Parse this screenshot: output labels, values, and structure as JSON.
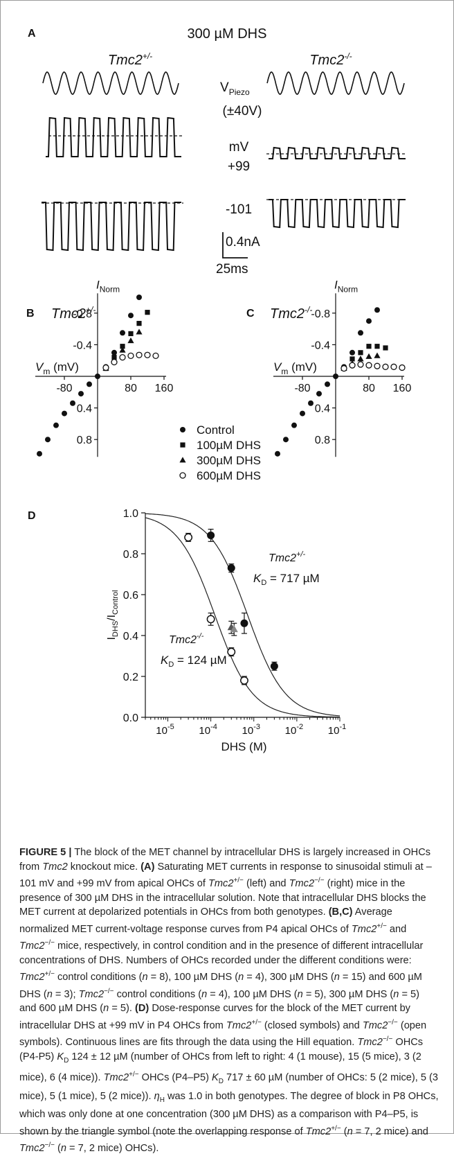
{
  "panel_a": {
    "label": "A",
    "condition": "300 µM DHS",
    "left_genotype": {
      "base": "Tmc2",
      "sup": "+/-"
    },
    "right_genotype": {
      "base": "Tmc2",
      "sup": "-/-"
    },
    "v_piezo": {
      "base": "V",
      "sub": "Piezo"
    },
    "piezo_amp": "(±40V)",
    "mv_unit": "mV",
    "pos_voltage": "+99",
    "neg_voltage": "-101",
    "scale_current": "0.4nA",
    "scale_time": "25ms"
  },
  "panel_b": {
    "label": "B",
    "genotype": {
      "base": "Tmc2",
      "sup": "+/-"
    }
  },
  "panel_c": {
    "label": "C",
    "genotype": {
      "base": "Tmc2",
      "sup": "-/-"
    }
  },
  "panel_d": {
    "label": "D"
  },
  "legend": {
    "items": [
      {
        "label": "Control",
        "marker": "filled-circle"
      },
      {
        "label": "100µM DHS",
        "marker": "filled-square"
      },
      {
        "label": "300µM DHS",
        "marker": "filled-triangle"
      },
      {
        "label": "600µM DHS",
        "marker": "open-circle"
      }
    ]
  },
  "chart_data": [
    {
      "type": "scatter",
      "panel": "B",
      "xlabel": "Vm (mV)",
      "ylabel": "INorm",
      "x_ticks": [
        "-80",
        "80",
        "160"
      ],
      "y_ticks": [
        "-0.8",
        "-0.4",
        "0.4",
        "0.8"
      ],
      "xlim": [
        -160,
        160
      ],
      "ylim": [
        1.0,
        -1.0
      ],
      "series": [
        {
          "name": "Control",
          "x": [
            -140,
            -120,
            -100,
            -80,
            -60,
            -40,
            -20,
            0,
            20,
            40,
            60,
            80,
            100
          ],
          "y": [
            0.98,
            0.8,
            0.62,
            0.47,
            0.34,
            0.22,
            0.1,
            0,
            -0.12,
            -0.3,
            -0.55,
            -0.77,
            -1.0
          ]
        },
        {
          "name": "100µM DHS",
          "x": [
            20,
            40,
            60,
            80,
            100,
            120
          ],
          "y": [
            -0.1,
            -0.24,
            -0.38,
            -0.54,
            -0.67,
            -0.81
          ]
        },
        {
          "name": "300µM DHS",
          "x": [
            20,
            40,
            60,
            80,
            100
          ],
          "y": [
            -0.1,
            -0.2,
            -0.33,
            -0.45,
            -0.56
          ]
        },
        {
          "name": "600µM DHS",
          "x": [
            20,
            40,
            60,
            80,
            100,
            120,
            140
          ],
          "y": [
            -0.11,
            -0.18,
            -0.24,
            -0.26,
            -0.27,
            -0.27,
            -0.26
          ]
        }
      ]
    },
    {
      "type": "scatter",
      "panel": "C",
      "xlabel": "Vm (mV)",
      "ylabel": "INorm",
      "x_ticks": [
        "-80",
        "80",
        "160"
      ],
      "y_ticks": [
        "-0.8",
        "-0.4",
        "0.4",
        "0.8"
      ],
      "xlim": [
        -160,
        160
      ],
      "ylim": [
        1.0,
        -1.0
      ],
      "series": [
        {
          "name": "Control",
          "x": [
            -140,
            -120,
            -100,
            -80,
            -60,
            -40,
            -20,
            0,
            20,
            40,
            60,
            80,
            100
          ],
          "y": [
            0.98,
            0.8,
            0.62,
            0.47,
            0.34,
            0.22,
            0.1,
            0,
            -0.12,
            -0.3,
            -0.55,
            -0.7,
            -0.84
          ]
        },
        {
          "name": "100µM DHS",
          "x": [
            20,
            40,
            60,
            80,
            100,
            120
          ],
          "y": [
            -0.1,
            -0.22,
            -0.3,
            -0.38,
            -0.38,
            -0.36
          ]
        },
        {
          "name": "300µM DHS",
          "x": [
            20,
            40,
            60,
            80,
            100
          ],
          "y": [
            -0.1,
            -0.16,
            -0.22,
            -0.25,
            -0.26
          ]
        },
        {
          "name": "600µM DHS",
          "x": [
            20,
            40,
            60,
            80,
            100,
            120,
            140,
            160
          ],
          "y": [
            -0.1,
            -0.14,
            -0.15,
            -0.14,
            -0.13,
            -0.12,
            -0.12,
            -0.11
          ]
        }
      ]
    },
    {
      "type": "scatter",
      "panel": "D",
      "xlabel": "DHS (M)",
      "ylabel": "IDHS/IControl",
      "log_x": true,
      "xlim": [
        3e-06,
        0.1
      ],
      "ylim": [
        0,
        1.0
      ],
      "x_ticks": [
        "10-5",
        "10-4",
        "10-3",
        "10-2",
        "10-1"
      ],
      "y_ticks": [
        "0.0",
        "0.2",
        "0.4",
        "0.6",
        "0.8",
        "1.0"
      ],
      "series": [
        {
          "name": "Tmc2+/-",
          "x": [
            0.0001,
            0.0003,
            0.0006,
            0.003
          ],
          "y": [
            0.89,
            0.73,
            0.46,
            0.25
          ],
          "err": [
            0.03,
            0.02,
            0.05,
            0.02
          ],
          "marker": "filled-circle"
        },
        {
          "name": "Tmc2-/-",
          "x": [
            3e-05,
            0.0001,
            0.0003,
            0.0006
          ],
          "y": [
            0.88,
            0.48,
            0.32,
            0.18
          ],
          "err": [
            0.02,
            0.03,
            0.02,
            0.02
          ],
          "marker": "open-circle"
        },
        {
          "name": "P8",
          "x": [
            0.0003,
            0.0003
          ],
          "y": [
            0.44,
            0.43
          ],
          "err": [
            0.03,
            0.03
          ],
          "marker": "triangle"
        }
      ],
      "fits": [
        {
          "name": "Tmc2+/-",
          "kd_label": "KD = 717 µM",
          "kd": 0.000717,
          "n": 1.0
        },
        {
          "name": "Tmc2-/-",
          "kd_label": "KD = 124 µM",
          "kd": 0.000124,
          "n": 1.0
        }
      ]
    }
  ],
  "caption": {
    "figure_label": "FIGURE 5 |",
    "lines": [
      "The block of the MET channel by intracellular DHS is largely",
      "increased in OHCs from Tmc2 knockout mice. (A) Saturating MET currents in",
      "response to sinusoidal stimuli at –101 mV and +99 mV from apical OHCs of",
      "Tmc2+/− (left) and Tmc2−/− (right) mice in the presence of 300 µM DHS in",
      "the intracellular solution. Note that intracellular DHS blocks the MET current at",
      "depolarized potentials in OHCs from both genotypes. (B,C) Average",
      "normalized MET current-voltage response curves from P4 apical OHCs of",
      "Tmc2+/− and Tmc2−/− mice, respectively, in control condition and in the",
      "presence of different intracellular concentrations of DHS. Numbers of OHCs",
      "recorded under the different conditions were: Tmc2+/− control conditions",
      "(n = 8), 100 µM DHS (n = 4), 300 µM DHS (n = 15) and 600 µM DHS (n = 3);",
      "Tmc2−/− control conditions (n = 4), 100 µM DHS (n = 5), 300 µM DHS (n = 5)",
      "and 600 µM DHS (n = 5). (D) Dose-response curves for the block of the MET",
      "current by intracellular DHS at +99 mV in P4 OHCs from Tmc2+/− (closed",
      "symbols) and Tmc2−/− (open symbols). Continuous lines are fits through the",
      "data using the Hill equation. Tmc2−/− OHCs (P4-P5) KD 124 ± 12 µM",
      "(number of OHCs from left to right: 4 (1 mouse), 15 (5 mice), 3 (2 mice), 6",
      "(4 mice)). Tmc2+/− OHCs (P4–P5) KD 717 ± 60 µM (number of OHCs: 5",
      "(2 mice), 5 (3 mice), 5 (1 mice), 5 (2 mice)). ηH was 1.0 in both genotypes. The",
      "degree of block in P8 OHCs, which was only done at one concentration (300",
      "µM DHS) as a comparison with P4–P5, is shown by the triangle symbol (note",
      "the overlapping response of Tmc2+/− (n = 7, 2 mice) and Tmc2−/− (n = 7,",
      "2 mice) OHCs)."
    ]
  }
}
